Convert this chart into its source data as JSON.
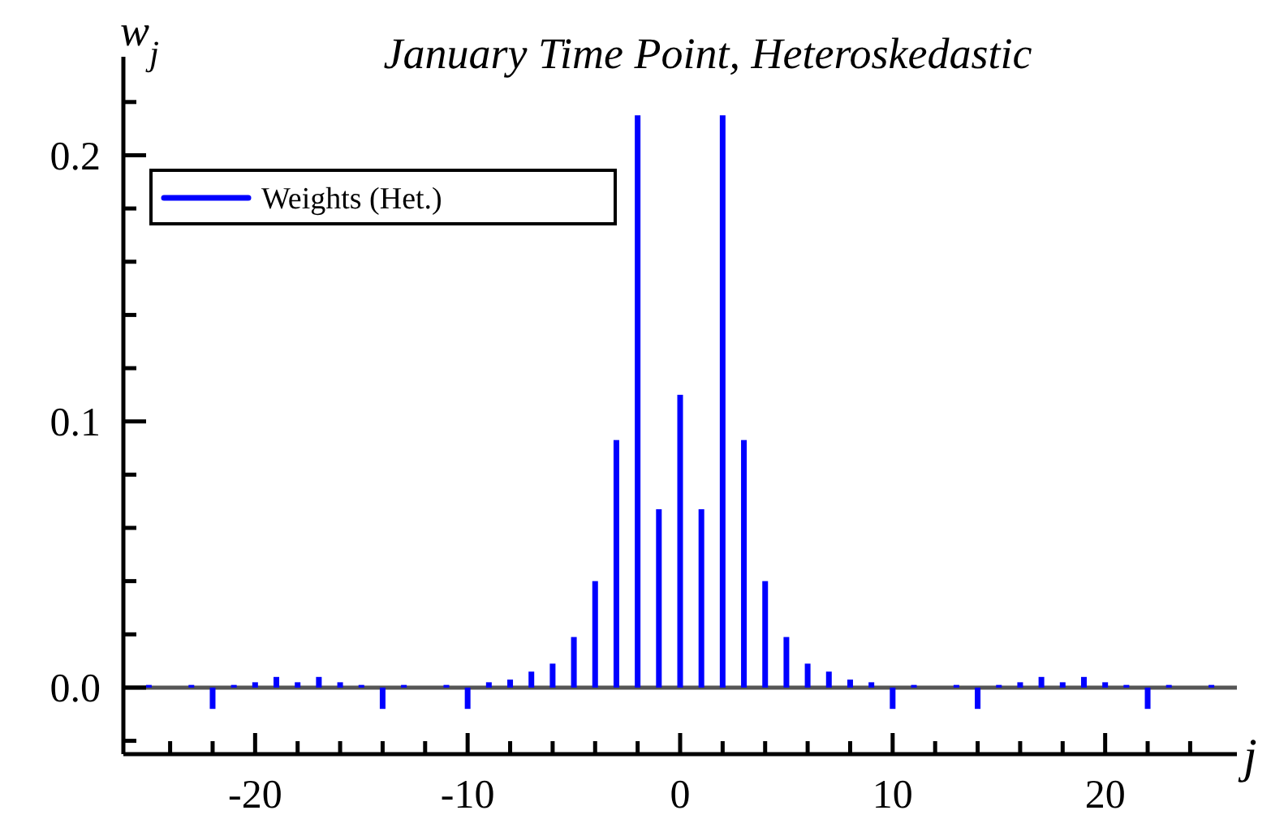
{
  "chart_data": {
    "type": "bar",
    "title": "January Time Point, Heteroskedastic",
    "xlabel": "j",
    "ylabel": "w$_{j}$",
    "x": [
      -25,
      -24,
      -23,
      -22,
      -21,
      -20,
      -19,
      -18,
      -17,
      -16,
      -15,
      -14,
      -13,
      -12,
      -11,
      -10,
      -9,
      -8,
      -7,
      -6,
      -5,
      -4,
      -3,
      -2,
      -1,
      0,
      1,
      2,
      3,
      4,
      5,
      6,
      7,
      8,
      9,
      10,
      11,
      12,
      13,
      14,
      15,
      16,
      17,
      18,
      19,
      20,
      21,
      22,
      23,
      24,
      25
    ],
    "series": [
      {
        "name": "Weights (Het.)",
        "color": "#0000ff",
        "values": [
          0.001,
          0,
          0.001,
          -0.008,
          0.001,
          0.002,
          0.004,
          0.002,
          0.004,
          0.002,
          0.001,
          -0.008,
          0.001,
          0,
          0.001,
          -0.008,
          0.002,
          0.003,
          0.006,
          0.009,
          0.019,
          0.04,
          0.093,
          0.215,
          0.067,
          0.11,
          0.067,
          0.215,
          0.093,
          0.04,
          0.019,
          0.009,
          0.006,
          0.003,
          0.002,
          -0.008,
          0.001,
          0,
          0.001,
          -0.008,
          0.001,
          0.002,
          0.004,
          0.002,
          0.004,
          0.002,
          0.001,
          -0.008,
          0.001,
          0,
          0.001
        ]
      }
    ],
    "xlim": [
      -26.2,
      26.2
    ],
    "ylim": [
      -0.025,
      0.237
    ],
    "xticks": [
      {
        "value": -24,
        "label": null
      },
      {
        "value": -22,
        "label": null
      },
      -20,
      {
        "value": -18,
        "label": null
      },
      {
        "value": -16,
        "label": null
      },
      {
        "value": -14,
        "label": null
      },
      {
        "value": -12,
        "label": null
      },
      -10,
      {
        "value": -8,
        "label": null
      },
      {
        "value": -6,
        "label": null
      },
      {
        "value": -4,
        "label": null
      },
      {
        "value": -2,
        "label": null
      },
      0,
      {
        "value": 2,
        "label": null
      },
      {
        "value": 4,
        "label": null
      },
      {
        "value": 6,
        "label": null
      },
      {
        "value": 8,
        "label": null
      },
      10,
      {
        "value": 12,
        "label": null
      },
      {
        "value": 14,
        "label": null
      },
      {
        "value": 16,
        "label": null
      },
      {
        "value": 18,
        "label": null
      },
      20,
      {
        "value": 22,
        "label": null
      },
      {
        "value": 24,
        "label": null
      }
    ],
    "yticks": [
      {
        "value": -0.02,
        "label": null
      },
      {
        "value": 0,
        "label": "0.0"
      },
      {
        "value": 0.02,
        "label": null
      },
      {
        "value": 0.04,
        "label": null
      },
      {
        "value": 0.06,
        "label": null
      },
      {
        "value": 0.08,
        "label": null
      },
      0.1,
      {
        "value": 0.12,
        "label": null
      },
      {
        "value": 0.14,
        "label": null
      },
      {
        "value": 0.16,
        "label": null
      },
      {
        "value": 0.18,
        "label": null
      },
      0.2,
      {
        "value": 0.22,
        "label": null
      }
    ],
    "ref_lines": [
      {
        "axis": "y",
        "value": 0,
        "label": null,
        "color": "#555555"
      }
    ],
    "legend": "top left",
    "grid": false
  }
}
